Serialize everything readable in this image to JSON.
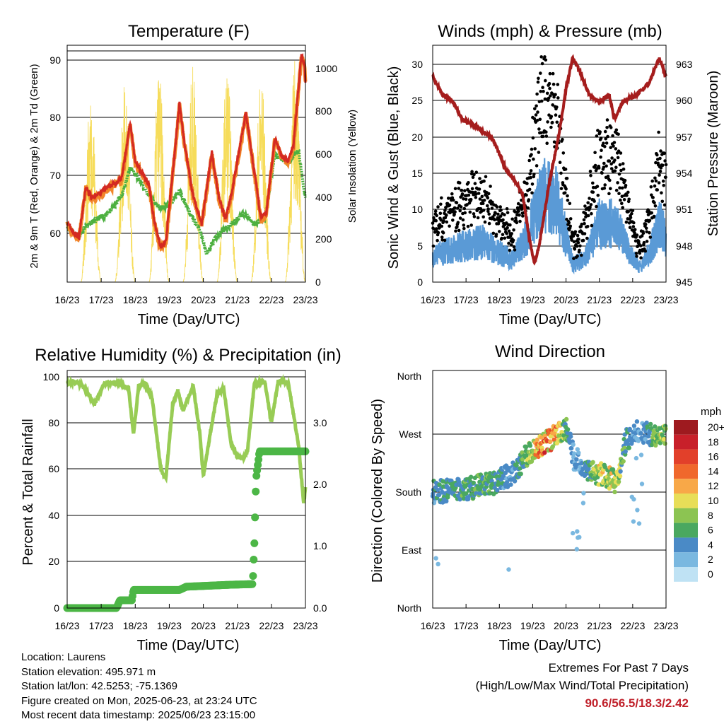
{
  "time_ticks": [
    "16/23",
    "17/23",
    "18/23",
    "19/23",
    "20/23",
    "21/23",
    "22/23",
    "23/23"
  ],
  "colors": {
    "temp_2m": "#d42a22",
    "temp_9m": "#f2862a",
    "dewpoint": "#4db040",
    "solar": "#f6dc5a",
    "wind": "#5a9ad6",
    "gust": "#000000",
    "pressure": "#a51d1d",
    "rh": "#98cc55",
    "rain": "#4cb646"
  },
  "panels": {
    "temperature": {
      "title": "Temperature (F)",
      "ylabel": "2m & 9m T (Red, Orange) & 2m Td (Green)",
      "y2label": "Solar Insolation (Yellow)",
      "xlabel": "Time (Day/UTC)",
      "yticks": [
        "60",
        "70",
        "80",
        "90"
      ],
      "y2ticks": [
        "0",
        "200",
        "400",
        "600",
        "800",
        "1000"
      ]
    },
    "winds": {
      "title": "Winds (mph) & Pressure (mb)",
      "ylabel": "Sonic Wind & Gust (Blue, Black)",
      "y2label": "Station Pressure (Maroon)",
      "xlabel": "Time (Day/UTC)",
      "yticks": [
        "0",
        "5",
        "10",
        "15",
        "20",
        "25",
        "30"
      ],
      "y2ticks": [
        "945",
        "948",
        "951",
        "954",
        "957",
        "960",
        "963"
      ]
    },
    "humidity": {
      "title": "Relative Humidity (%) & Precipitation (in)",
      "ylabel": "Percent & Total Rainfall",
      "xlabel": "Time (Day/UTC)",
      "yticks": [
        "0",
        "20",
        "40",
        "60",
        "80",
        "100"
      ],
      "y2ticks": [
        "0.0",
        "1.0",
        "2.0",
        "3.0"
      ]
    },
    "direction": {
      "title": "Wind Direction",
      "ylabel": "Direction (Colored By Speed)",
      "xlabel": "Time (Day/UTC)",
      "yticks": [
        "North",
        "East",
        "South",
        "West",
        "North"
      ],
      "legend_title": "mph",
      "legend_labels": [
        "20+",
        "18",
        "16",
        "14",
        "12",
        "10",
        "8",
        "6",
        "4",
        "2",
        "0"
      ],
      "legend_colors": [
        "#9e1a1f",
        "#c8202a",
        "#e2402a",
        "#f0682c",
        "#f8a848",
        "#e8de58",
        "#8cc452",
        "#4aa860",
        "#4a8ac6",
        "#7ab8e0",
        "#bfe2f4"
      ]
    }
  },
  "info": {
    "location": "Location: Laurens",
    "elevation": "Station elevation: 495.971 m",
    "latlon": "Station lat/lon: 42.5253; -75.1369",
    "created": "Figure created on Mon, 2025-06-23, at 23:24 UTC",
    "recent": "Most recent data timestamp: 2025/06/23 23:15:00"
  },
  "extremes": {
    "title": "Extremes For Past 7 Days",
    "subtitle": "(High/Low/Max Wind/Total Precipitation)",
    "values": "90.6/56.5/18.3/2.42"
  },
  "chart_data": [
    {
      "type": "line",
      "x": [
        "16/23",
        "17/23",
        "18/23",
        "19/23",
        "20/23",
        "21/23",
        "22/23",
        "23/23"
      ],
      "ylim": [
        51,
        92
      ],
      "y2lim": [
        0,
        1100
      ],
      "series": [
        {
          "values": [
            61.3,
            66.5,
            71.0,
            57.0,
            60.0,
            60.5,
            75.5,
            86.0
          ],
          "axis": "left"
        },
        {
          "values": [
            60.5,
            60.0,
            70.0,
            61.0,
            57.0,
            61.0,
            72.0,
            66.0
          ],
          "axis": "left"
        },
        {
          "values": [
            0,
            0,
            0,
            0,
            0,
            0,
            0,
            0
          ],
          "axis": "right"
        }
      ],
      "daily_max_temp": [
        67.5,
        78.5,
        82.0,
        73.5,
        77.5,
        80.5,
        90.5
      ],
      "daily_max_solar": [
        900,
        930,
        1000,
        1020,
        1010,
        980,
        1050
      ]
    },
    {
      "type": "scatter",
      "x": [
        "16/23",
        "17/23",
        "18/23",
        "19/23",
        "20/23",
        "21/23",
        "22/23",
        "23/23"
      ],
      "ylim": [
        0,
        32
      ],
      "y2lim": [
        945,
        964
      ],
      "series": [
        {
          "values": [
            3.5,
            5.0,
            3.5,
            12.0,
            2.5,
            8.0,
            5.0,
            5.0
          ],
          "axis": "left"
        },
        {
          "values": [
            8.0,
            12.0,
            6.0,
            22.0,
            5.0,
            16.0,
            8.0,
            10.0
          ],
          "axis": "left"
        },
        {
          "values": [
            961.5,
            958.0,
            956.0,
            946.5,
            963.0,
            957.5,
            962.0,
            961.5
          ],
          "axis": "right"
        }
      ]
    },
    {
      "type": "line",
      "x": [
        "16/23",
        "17/23",
        "18/23",
        "19/23",
        "20/23",
        "21/23",
        "22/23",
        "23/23"
      ],
      "ylim": [
        0,
        100
      ],
      "y2lim": [
        0,
        3.67
      ],
      "series": [
        {
          "values": [
            97,
            96,
            96,
            88,
            97,
            72,
            97,
            45
          ],
          "axis": "left"
        },
        {
          "values": [
            0.0,
            0.0,
            0.28,
            0.3,
            0.36,
            0.37,
            2.42,
            2.42
          ],
          "axis": "right"
        }
      ]
    },
    {
      "type": "scatter",
      "x": [
        "16/23",
        "17/23",
        "18/23",
        "19/23",
        "20/23",
        "21/23",
        "22/23",
        "23/23"
      ],
      "ylim": [
        0,
        360
      ],
      "series": [
        {
          "values": [
            185,
            185,
            195,
            225,
            270,
            210,
            270,
            270
          ]
        }
      ]
    }
  ]
}
